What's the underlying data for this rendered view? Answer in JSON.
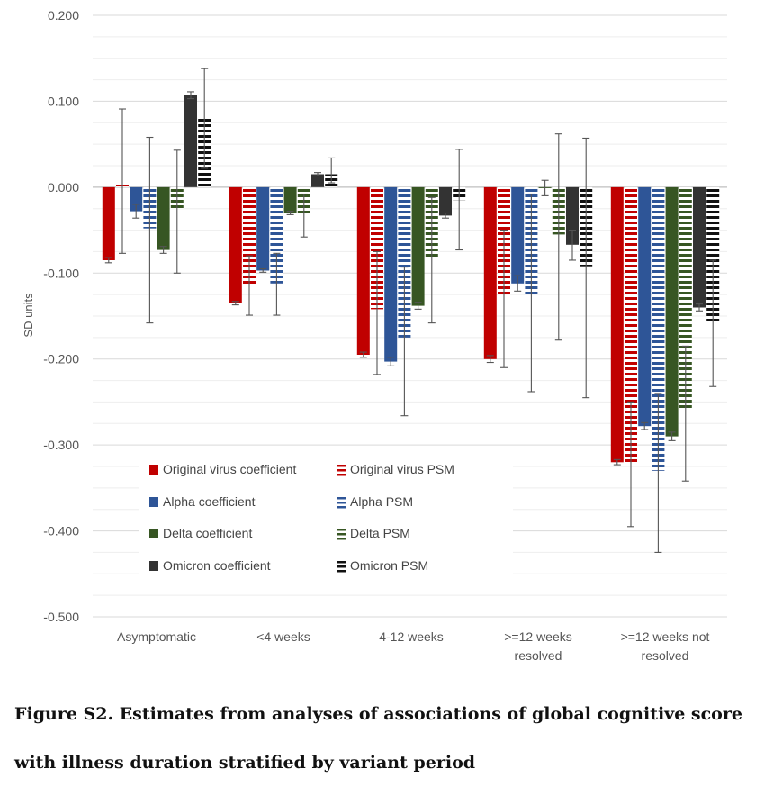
{
  "caption": "Figure S2. Estimates from analyses of associations of global cognitive score with illness duration stratified by variant period",
  "chart_data": {
    "type": "bar",
    "title": "",
    "ylabel": "SD units",
    "xlabel": "",
    "ylim": [
      -0.5,
      0.2
    ],
    "yticks": [
      0.2,
      0.1,
      0.0,
      -0.1,
      -0.2,
      -0.3,
      -0.4,
      -0.5
    ],
    "ytick_labels": [
      "0.200",
      "0.100",
      "0.000",
      "-0.100",
      "-0.200",
      "-0.300",
      "-0.400",
      "-0.500"
    ],
    "grid": true,
    "legend_position": "lower-left",
    "categories": [
      [
        "Asymptomatic"
      ],
      [
        "<4 weeks"
      ],
      [
        "4-12 weeks"
      ],
      [
        ">=12 weeks",
        "resolved"
      ],
      [
        ">=12 weeks not",
        "resolved"
      ]
    ],
    "series": [
      {
        "name": "Original virus coefficient",
        "color": "#C00000",
        "style": "solid",
        "values": [
          -0.085,
          -0.135,
          -0.195,
          -0.2,
          -0.32
        ],
        "err_low": [
          -0.088,
          -0.137,
          -0.198,
          -0.204,
          -0.323
        ],
        "err_high": [
          -0.082,
          -0.133,
          -0.192,
          -0.196,
          -0.317
        ]
      },
      {
        "name": "Original virus PSM",
        "color": "#C00000",
        "style": "dashed",
        "values": [
          0.002,
          -0.115,
          -0.142,
          -0.125,
          -0.322
        ],
        "err_low": [
          -0.077,
          -0.149,
          -0.218,
          -0.21,
          -0.395
        ],
        "err_high": [
          0.091,
          -0.08,
          -0.075,
          -0.05,
          -0.25
        ]
      },
      {
        "name": "Alpha coefficient",
        "color": "#2E5597",
        "style": "solid",
        "values": [
          -0.028,
          -0.097,
          -0.203,
          -0.112,
          -0.278
        ],
        "err_low": [
          -0.036,
          -0.099,
          -0.208,
          -0.121,
          -0.282
        ],
        "err_high": [
          -0.02,
          -0.095,
          -0.198,
          -0.103,
          -0.274
        ]
      },
      {
        "name": "Alpha PSM",
        "color": "#2E5597",
        "style": "dashed",
        "values": [
          -0.048,
          -0.112,
          -0.175,
          -0.125,
          -0.33
        ],
        "err_low": [
          -0.158,
          -0.149,
          -0.266,
          -0.238,
          -0.425
        ],
        "err_high": [
          0.058,
          -0.077,
          -0.093,
          -0.008,
          -0.24
        ]
      },
      {
        "name": "Delta coefficient",
        "color": "#375623",
        "style": "solid",
        "values": [
          -0.073,
          -0.03,
          -0.138,
          0.0,
          -0.29
        ],
        "err_low": [
          -0.077,
          -0.032,
          -0.142,
          -0.01,
          -0.295
        ],
        "err_high": [
          -0.069,
          -0.028,
          -0.134,
          0.008,
          -0.285
        ]
      },
      {
        "name": "Delta PSM",
        "color": "#375623",
        "style": "dashed",
        "values": [
          -0.025,
          -0.033,
          -0.083,
          -0.055,
          -0.26
        ],
        "err_low": [
          -0.1,
          -0.058,
          -0.158,
          -0.178,
          -0.342
        ],
        "err_high": [
          0.043,
          -0.008,
          -0.012,
          0.062,
          -0.185
        ]
      },
      {
        "name": "Omicron coefficient",
        "color": "#333333",
        "style": "solid",
        "values": [
          0.107,
          0.015,
          -0.033,
          -0.067,
          -0.14
        ],
        "err_low": [
          0.103,
          0.013,
          -0.036,
          -0.085,
          -0.144
        ],
        "err_high": [
          0.111,
          0.017,
          -0.03,
          -0.05,
          -0.136
        ]
      },
      {
        "name": "Omicron PSM",
        "color": "#111111",
        "style": "dashed",
        "values": [
          0.08,
          0.015,
          -0.015,
          -0.092,
          -0.157
        ],
        "err_low": [
          0.022,
          0.005,
          -0.073,
          -0.245,
          -0.232
        ],
        "err_high": [
          0.138,
          0.034,
          0.044,
          0.057,
          -0.085
        ]
      }
    ]
  }
}
